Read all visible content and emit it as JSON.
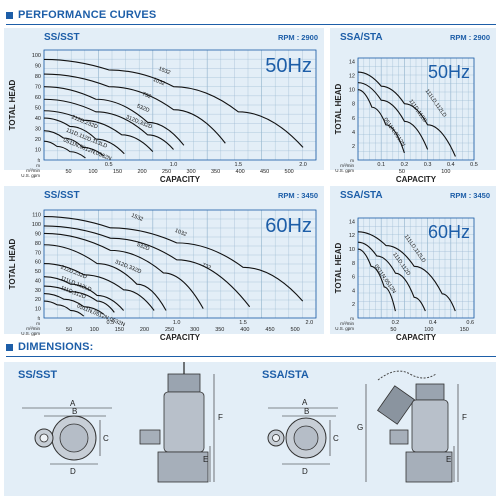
{
  "sections": {
    "performance": "PERFORMANCE CURVES",
    "dimensions": "DIMENSIONS:"
  },
  "colors": {
    "accent": "#1d5ea8",
    "panel": "#e3eef7",
    "grid": "#9ab9d1"
  },
  "chart_data": [
    {
      "type": "line",
      "model": "SS/SST",
      "rpm": "RPM : 2900",
      "freq": "50Hz",
      "ylabel": "TOTAL HEAD",
      "xlabel": "CAPACITY",
      "y_ticks": [
        "10",
        "20",
        "30",
        "40",
        "50",
        "60",
        "70",
        "80",
        "90",
        "100"
      ],
      "ylim": [
        0,
        105
      ],
      "axis_units": [
        "ft",
        "m",
        "m³/min",
        "U.S. gpm"
      ],
      "x_m3min_ticks": [
        "0.5",
        "1.0",
        "1.5",
        "2.0"
      ],
      "x_gpm_ticks": [
        "50",
        "100",
        "150",
        "200",
        "250",
        "300",
        "350",
        "400",
        "450",
        "500"
      ],
      "xlim": [
        0,
        2.1
      ],
      "series": [
        {
          "name": "1532",
          "x": [
            0,
            0.5,
            1.0,
            1.5,
            2.0
          ],
          "y": [
            96,
            86,
            70,
            46,
            12
          ]
        },
        {
          "name": "1032",
          "x": [
            0,
            0.5,
            1.0,
            1.4
          ],
          "y": [
            82,
            70,
            48,
            16
          ]
        },
        {
          "name": "732",
          "x": [
            0,
            0.4,
            0.8,
            1.08
          ],
          "y": [
            70,
            58,
            36,
            14
          ]
        },
        {
          "name": "532D",
          "x": [
            0,
            0.4,
            0.8,
            1.0
          ],
          "y": [
            58,
            46,
            24,
            10
          ]
        },
        {
          "name": "312D,332D",
          "x": [
            0,
            0.3,
            0.6,
            0.84
          ],
          "y": [
            47,
            38,
            24,
            8
          ]
        },
        {
          "name": "212D,232D",
          "x": [
            0,
            0.2,
            0.4,
            0.62
          ],
          "y": [
            40,
            32,
            20,
            6
          ]
        },
        {
          "name": "111D,112D,113LD",
          "x": [
            0,
            0.15,
            0.3,
            0.46
          ],
          "y": [
            28,
            21,
            12,
            4
          ]
        },
        {
          "name": "0511N,0512N,0532N",
          "x": [
            0,
            0.1,
            0.2,
            0.32
          ],
          "y": [
            18,
            13,
            8,
            2
          ]
        }
      ]
    },
    {
      "type": "line",
      "model": "SSA/STA",
      "rpm": "RPM : 2900",
      "freq": "50Hz",
      "ylabel": "TOTAL HEAD",
      "xlabel": "CAPACITY",
      "y_ticks": [
        "2",
        "4",
        "6",
        "8",
        "10",
        "12",
        "14"
      ],
      "ylim": [
        0,
        14.5
      ],
      "axis_units": [
        "m",
        "m³/min",
        "U.S. gpm"
      ],
      "x_m3min_ticks": [
        "0.1",
        "0.2",
        "0.3",
        "0.4",
        "0.5"
      ],
      "x_gpm_ticks": [
        "50",
        "100"
      ],
      "xlim": [
        0,
        0.5
      ],
      "series": [
        {
          "name": "111LD,112LD",
          "x": [
            0,
            0.1,
            0.2,
            0.3,
            0.42
          ],
          "y": [
            12.5,
            10.5,
            8,
            5,
            0.5
          ]
        },
        {
          "name": "111D,112D",
          "x": [
            0,
            0.1,
            0.2,
            0.3
          ],
          "y": [
            11,
            8.5,
            5.5,
            1.5
          ]
        },
        {
          "name": "0511N,0512N",
          "x": [
            0,
            0.06,
            0.12,
            0.2
          ],
          "y": [
            10,
            7.5,
            5,
            1
          ]
        }
      ]
    },
    {
      "type": "line",
      "model": "SS/SST",
      "rpm": "RPM : 3450",
      "freq": "60Hz",
      "ylabel": "TOTAL HEAD",
      "xlabel": "CAPACITY",
      "y_ticks": [
        "10",
        "20",
        "30",
        "40",
        "50",
        "60",
        "70",
        "80",
        "90",
        "100",
        "110"
      ],
      "ylim": [
        0,
        115
      ],
      "axis_units": [
        "ft",
        "m",
        "m³/min",
        "U.S. gpm"
      ],
      "x_m3min_ticks": [
        "0.5",
        "1.0",
        "1.5",
        "2.0"
      ],
      "x_gpm_ticks": [
        "50",
        "100",
        "150",
        "200",
        "250",
        "300",
        "350",
        "400",
        "450",
        "500"
      ],
      "xlim": [
        0,
        2.05
      ],
      "series": [
        {
          "name": "1532",
          "x": [
            0,
            0.5,
            1.0,
            1.5,
            1.95
          ],
          "y": [
            108,
            96,
            80,
            54,
            18
          ]
        },
        {
          "name": "1032",
          "x": [
            0,
            0.5,
            1.0,
            1.55
          ],
          "y": [
            98,
            85,
            62,
            12
          ]
        },
        {
          "name": "732",
          "x": [
            0,
            0.5,
            0.9,
            1.2
          ],
          "y": [
            90,
            72,
            48,
            10
          ]
        },
        {
          "name": "532D",
          "x": [
            0,
            0.4,
            0.7,
            0.92
          ],
          "y": [
            78,
            58,
            36,
            8
          ]
        },
        {
          "name": "312D,332D",
          "x": [
            0,
            0.3,
            0.6,
            0.83
          ],
          "y": [
            58,
            46,
            30,
            8
          ]
        },
        {
          "name": "212D,232D",
          "x": [
            0,
            0.2,
            0.4,
            0.6
          ],
          "y": [
            44,
            36,
            24,
            8
          ]
        },
        {
          "name": "111LD,112LD",
          "x": [
            0,
            0.2,
            0.4,
            0.53
          ],
          "y": [
            34,
            28,
            18,
            6
          ]
        },
        {
          "name": "111D,112D",
          "x": [
            0,
            0.15,
            0.3,
            0.45
          ],
          "y": [
            26,
            20,
            12,
            4
          ]
        },
        {
          "name": "0511N,0512N,0532N",
          "x": [
            0,
            0.1,
            0.2,
            0.3
          ],
          "y": [
            18,
            14,
            8,
            2
          ]
        }
      ]
    },
    {
      "type": "line",
      "model": "SSA/STA",
      "rpm": "RPM : 3450",
      "freq": "60Hz",
      "ylabel": "TOTAL HEAD",
      "xlabel": "CAPACITY",
      "y_ticks": [
        "2",
        "4",
        "6",
        "8",
        "10",
        "12",
        "14"
      ],
      "ylim": [
        0,
        14.5
      ],
      "axis_units": [
        "m",
        "m³/min",
        "U.S. gpm"
      ],
      "x_m3min_ticks": [
        "0.2",
        "0.4",
        "0.6"
      ],
      "x_gpm_ticks": [
        "50",
        "100",
        "150"
      ],
      "xlim": [
        0,
        0.62
      ],
      "series": [
        {
          "name": "111LD,112LD",
          "x": [
            0,
            0.15,
            0.3,
            0.45,
            0.52
          ],
          "y": [
            12.5,
            10.5,
            7.5,
            3.5,
            1
          ]
        },
        {
          "name": "111D,112D",
          "x": [
            0,
            0.1,
            0.2,
            0.3,
            0.36
          ],
          "y": [
            11,
            9,
            6.5,
            3,
            1
          ]
        },
        {
          "name": "0511N,0512N",
          "x": [
            0,
            0.07,
            0.14,
            0.2
          ],
          "y": [
            10,
            7.5,
            4.5,
            1
          ]
        }
      ]
    }
  ],
  "dimensions": {
    "left_title": "SS/SST",
    "right_title": "SSA/STA",
    "left_labels": {
      "a": "A",
      "b": "B",
      "c": "C",
      "d": "D",
      "e": "E",
      "f": "F"
    },
    "right_labels": {
      "a": "A",
      "b": "B",
      "c": "C",
      "d": "D",
      "e": "E",
      "f": "F",
      "g": "G"
    }
  }
}
